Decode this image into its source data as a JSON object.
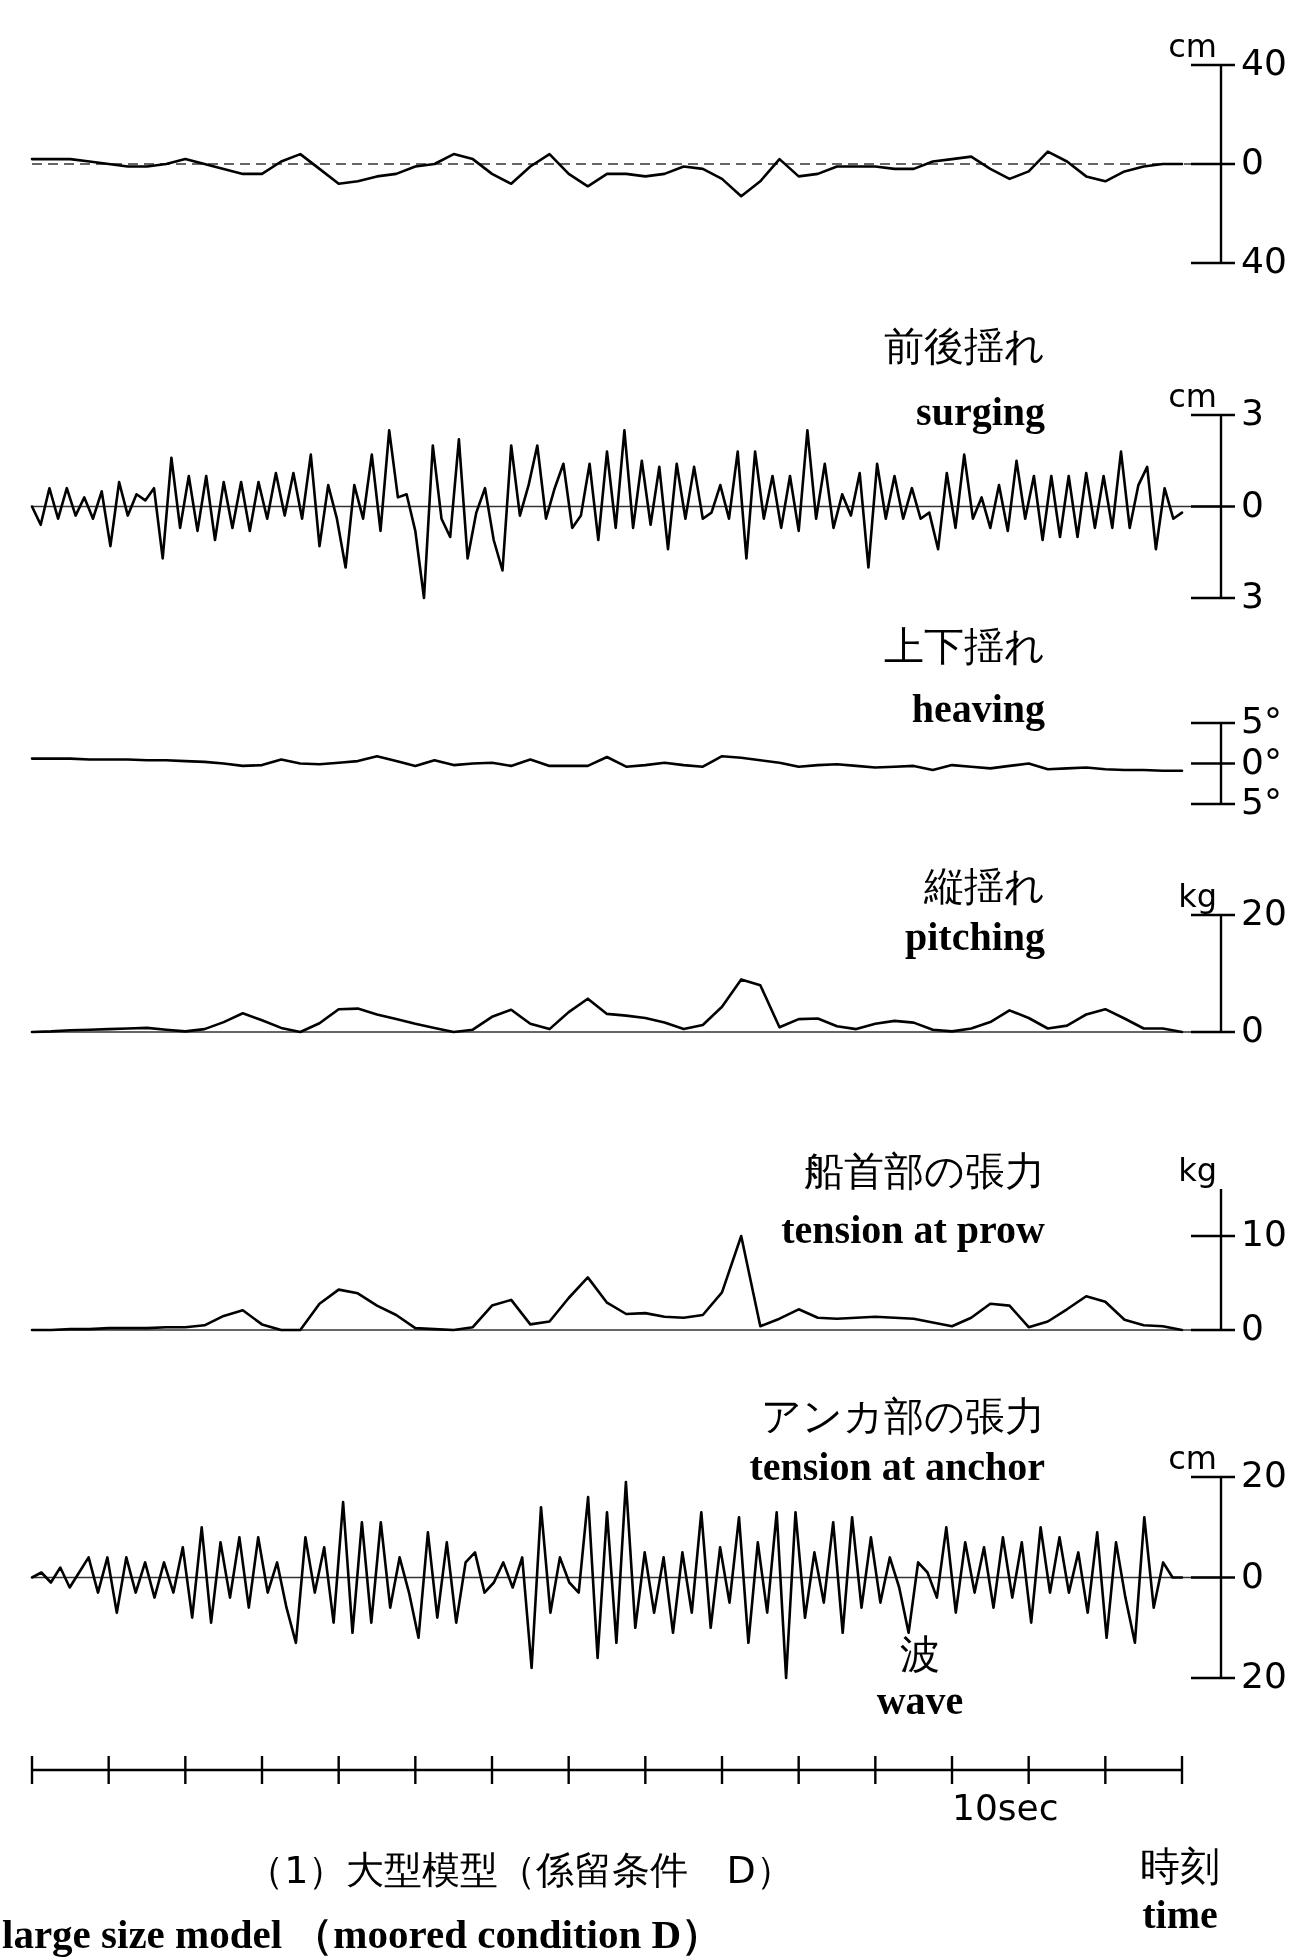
{
  "chart_data": [
    {
      "type": "line",
      "title": "前後揺れ",
      "subtitle": "surging",
      "ylabel": "cm",
      "ylim": [
        -40,
        40
      ],
      "yticks": [
        {
          "value": -40,
          "label": "40"
        },
        0,
        40
      ],
      "tick_labels": "y",
      "ref_lines": [
        {
          "axis": "y",
          "value": 0,
          "line_style": "dashed"
        }
      ],
      "categories": [
        null,
        null,
        null,
        null,
        null,
        null,
        null,
        null,
        null,
        null,
        null,
        null,
        null,
        null,
        null,
        null,
        null,
        null,
        null,
        null,
        null,
        null,
        null,
        null,
        null,
        null,
        null,
        null,
        null,
        null,
        null,
        null,
        null,
        null,
        null,
        null,
        null,
        null,
        null,
        null,
        null,
        null,
        null,
        null,
        null,
        null,
        null,
        null,
        null,
        null,
        null,
        null,
        null,
        null,
        null,
        null,
        null,
        null,
        null,
        null,
        null
      ],
      "series": [
        {
          "color": "#000000",
          "values": [
            2,
            2,
            2,
            1,
            0,
            -1,
            -1,
            0,
            2,
            0,
            -2,
            -4,
            -4,
            1,
            4,
            -2,
            -8,
            -7,
            -5,
            -4,
            -1,
            0,
            4,
            2,
            -4,
            -8,
            -1,
            4,
            -4,
            -9,
            -4,
            -4,
            -5,
            -4,
            -1,
            -2,
            -6,
            -13,
            -7,
            2,
            -5,
            -4,
            -1,
            -1,
            -1,
            -2,
            -2,
            1,
            2,
            3,
            -2,
            -6,
            -3,
            5,
            1,
            -5,
            -7,
            -3,
            -1,
            0,
            0
          ]
        }
      ]
    },
    {
      "type": "line",
      "title": "上下揺れ",
      "subtitle": "heaving",
      "ylabel": "cm",
      "ylim": [
        -3,
        3
      ],
      "yticks": [
        {
          "value": -3,
          "label": "3"
        },
        0,
        3
      ],
      "tick_labels": "y",
      "ref_lines": [
        {
          "axis": "y",
          "value": 0,
          "line_style": "solid"
        }
      ],
      "categories": [
        null,
        null,
        null,
        null,
        null,
        null,
        null,
        null,
        null,
        null,
        null,
        null,
        null,
        null,
        null,
        null,
        null,
        null,
        null,
        null,
        null,
        null,
        null,
        null,
        null,
        null,
        null,
        null,
        null,
        null,
        null,
        null,
        null,
        null,
        null,
        null,
        null,
        null,
        null,
        null,
        null,
        null,
        null,
        null,
        null,
        null,
        null,
        null,
        null,
        null,
        null,
        null,
        null,
        null,
        null,
        null,
        null,
        null,
        null,
        null,
        null,
        null,
        null,
        null,
        null,
        null,
        null,
        null,
        null,
        null,
        null,
        null,
        null,
        null,
        null,
        null,
        null,
        null,
        null,
        null,
        null,
        null,
        null,
        null,
        null,
        null,
        null,
        null,
        null,
        null,
        null,
        null,
        null,
        null,
        null,
        null,
        null,
        null,
        null,
        null,
        null,
        null,
        null,
        null,
        null,
        null,
        null,
        null,
        null,
        null,
        null,
        null,
        null,
        null,
        null,
        null,
        null,
        null,
        null,
        null,
        null,
        null,
        null,
        null,
        null,
        null,
        null,
        null,
        null,
        null,
        null,
        null,
        null
      ],
      "series": [
        {
          "color": "#000000",
          "values": [
            0,
            -0.6,
            0.6,
            -0.4,
            0.6,
            -0.3,
            0.3,
            -0.4,
            0.5,
            -1.3,
            0.8,
            -0.3,
            0.4,
            0.2,
            0.6,
            -1.7,
            1.6,
            -0.7,
            1.0,
            -0.8,
            1.0,
            -1.1,
            0.8,
            -0.7,
            0.8,
            -0.8,
            0.8,
            -0.4,
            1.1,
            -0.3,
            1.1,
            -0.4,
            1.7,
            -1.3,
            0.7,
            -0.4,
            -2.0,
            0.7,
            -0.4,
            1.7,
            -0.8,
            2.5,
            0.3,
            0.4,
            -0.8,
            -3,
            2.0,
            -0.4,
            -1.0,
            2.2,
            -1.7,
            -0.2,
            0.6,
            -1.1,
            -2.1,
            2.0,
            -0.3,
            0.7,
            2.0,
            -0.4,
            0.6,
            1.4,
            -0.7,
            -0.3,
            1.4,
            -1.1,
            1.8,
            -0.7,
            2.5,
            -0.7,
            1.5,
            -0.6,
            1.3,
            -1.4,
            1.4,
            -0.4,
            1.3,
            -0.4,
            -0.2,
            0.7,
            -0.4,
            1.8,
            -1.7,
            1.8,
            -0.4,
            1.0,
            -0.7,
            1.0,
            -0.8,
            2.5,
            -0.4,
            1.4,
            -0.7,
            0.4,
            -0.3,
            1.1,
            -2.0,
            1.4,
            -0.4,
            1.0,
            -0.4,
            0.6,
            -0.4,
            -0.2,
            -1.4,
            1.1,
            -0.7,
            1.7,
            -0.4,
            0.3,
            -0.7,
            0.7,
            -0.8,
            1.5,
            -0.4,
            1.0,
            -1.1,
            1.0,
            -1.0,
            1.0,
            -1.0,
            1.1,
            -0.7,
            1.0,
            -0.7,
            1.8,
            -0.7,
            0.7,
            1.3,
            -1.4,
            0.6,
            -0.4,
            -0.2
          ]
        }
      ]
    },
    {
      "type": "line",
      "title": "縦揺れ",
      "subtitle": "pitching",
      "ylim": [
        -5,
        5
      ],
      "yticks": [
        {
          "value": -5,
          "label": "5°"
        },
        {
          "value": 0,
          "label": "0°"
        },
        {
          "value": 5,
          "label": "5°"
        }
      ],
      "tick_labels": "y",
      "categories": [
        null,
        null,
        null,
        null,
        null,
        null,
        null,
        null,
        null,
        null,
        null,
        null,
        null,
        null,
        null,
        null,
        null,
        null,
        null,
        null,
        null,
        null,
        null,
        null,
        null,
        null,
        null,
        null,
        null,
        null,
        null,
        null,
        null,
        null,
        null,
        null,
        null,
        null,
        null,
        null,
        null,
        null,
        null,
        null,
        null,
        null,
        null,
        null,
        null,
        null,
        null,
        null,
        null,
        null,
        null,
        null,
        null,
        null,
        null,
        null,
        null
      ],
      "series": [
        {
          "color": "#000000",
          "values": [
            0.6,
            0.6,
            0.6,
            0.5,
            0.5,
            0.5,
            0.4,
            0.4,
            0.3,
            0.2,
            0,
            -0.3,
            -0.2,
            0.5,
            0,
            -0.1,
            0.1,
            0.3,
            0.9,
            0.3,
            -0.3,
            0.4,
            -0.2,
            0,
            0.1,
            -0.3,
            0.5,
            -0.3,
            -0.3,
            -0.3,
            0.8,
            -0.4,
            -0.2,
            0.1,
            -0.2,
            -0.4,
            0.9,
            0.7,
            0.4,
            0.1,
            -0.4,
            -0.2,
            -0.1,
            -0.3,
            -0.5,
            -0.4,
            -0.3,
            -0.8,
            -0.2,
            -0.4,
            -0.6,
            -0.3,
            0,
            -0.7,
            -0.6,
            -0.5,
            -0.7,
            -0.8,
            -0.8,
            -0.9,
            -0.9
          ]
        }
      ]
    },
    {
      "type": "line",
      "title": "船首部の張力",
      "subtitle": "tension at prow",
      "ylabel": "kg",
      "ylim": [
        0,
        20
      ],
      "yticks": [
        0,
        20
      ],
      "tick_labels": "y",
      "ref_lines": [
        {
          "axis": "y",
          "value": 0,
          "line_style": "solid"
        }
      ],
      "categories": [
        null,
        null,
        null,
        null,
        null,
        null,
        null,
        null,
        null,
        null,
        null,
        null,
        null,
        null,
        null,
        null,
        null,
        null,
        null,
        null,
        null,
        null,
        null,
        null,
        null,
        null,
        null,
        null,
        null,
        null,
        null,
        null,
        null,
        null,
        null,
        null,
        null,
        null,
        null,
        null,
        null,
        null,
        null,
        null,
        null,
        null,
        null,
        null,
        null,
        null,
        null,
        null,
        null,
        null,
        null,
        null,
        null,
        null,
        null,
        null,
        null
      ],
      "series": [
        {
          "color": "#000000",
          "values": [
            0,
            0.1,
            0.3,
            0.4,
            0.5,
            0.6,
            0.7,
            0.4,
            0.1,
            0.5,
            1.7,
            3.2,
            2,
            0.7,
            0,
            1.5,
            3.9,
            4.0,
            3,
            2.2,
            1.4,
            0.7,
            0,
            0.4,
            2.6,
            3.8,
            1.4,
            0.5,
            3.4,
            5.7,
            3.1,
            2.8,
            2.4,
            1.6,
            0.5,
            1.2,
            4.3,
            9,
            8,
            0.8,
            2.2,
            2.3,
            1,
            0.5,
            1.4,
            1.9,
            1.6,
            0.4,
            0.1,
            0.6,
            1.7,
            3.7,
            2.4,
            0.6,
            1.1,
            3,
            3.9,
            2.3,
            0.6,
            0.6,
            0
          ]
        }
      ]
    },
    {
      "type": "line",
      "title": "アンカ部の張力",
      "subtitle": "tension at anchor",
      "ylabel": "kg",
      "ylim": [
        0,
        15
      ],
      "yticks": [
        0,
        10
      ],
      "tick_labels": "y",
      "ref_lines": [
        {
          "axis": "y",
          "value": 0,
          "line_style": "solid"
        }
      ],
      "categories": [
        null,
        null,
        null,
        null,
        null,
        null,
        null,
        null,
        null,
        null,
        null,
        null,
        null,
        null,
        null,
        null,
        null,
        null,
        null,
        null,
        null,
        null,
        null,
        null,
        null,
        null,
        null,
        null,
        null,
        null,
        null,
        null,
        null,
        null,
        null,
        null,
        null,
        null,
        null,
        null,
        null,
        null,
        null,
        null,
        null,
        null,
        null,
        null,
        null,
        null,
        null,
        null,
        null,
        null,
        null,
        null,
        null,
        null,
        null,
        null,
        null
      ],
      "series": [
        {
          "color": "#000000",
          "values": [
            0,
            0,
            0.1,
            0.1,
            0.2,
            0.2,
            0.2,
            0.3,
            0.3,
            0.5,
            1.5,
            2.1,
            0.6,
            0,
            0,
            2.8,
            4.3,
            3.9,
            2.6,
            1.6,
            0.2,
            0.1,
            0,
            0.3,
            2.6,
            3.2,
            0.6,
            0.9,
            3.4,
            5.6,
            2.9,
            1.7,
            1.8,
            1.4,
            1.3,
            1.6,
            4,
            10,
            0.4,
            1.2,
            2.2,
            1.3,
            1.2,
            1.3,
            1.4,
            1.3,
            1.2,
            0.8,
            0.4,
            1.3,
            2.8,
            2.6,
            0.3,
            0.9,
            2.2,
            3.6,
            3,
            1.1,
            0.5,
            0.4,
            0
          ]
        }
      ]
    },
    {
      "type": "line",
      "title": "波",
      "subtitle": "wave",
      "ylabel": "cm",
      "xlabel": "時刻\ntime",
      "ylim": [
        -20,
        20
      ],
      "yticks": [
        {
          "value": -20,
          "label": "20"
        },
        0,
        20
      ],
      "tick_labels": "y",
      "ref_lines": [
        {
          "axis": "y",
          "value": 0,
          "line_style": "solid"
        }
      ],
      "annotations": [
        "10sec",
        "（1）大型模型（係留条件　D）",
        "large size model （moored condition D）"
      ],
      "categories": [
        null,
        null,
        null,
        null,
        null,
        null,
        null,
        null,
        null,
        null,
        null,
        null,
        null,
        null,
        null,
        null,
        null,
        null,
        null,
        null,
        null,
        null,
        null,
        null,
        null,
        null,
        null,
        null,
        null,
        null,
        null,
        null,
        null,
        null,
        null,
        null,
        null,
        null,
        null,
        null,
        null,
        null,
        null,
        null,
        null,
        null,
        null,
        null,
        null,
        null,
        null,
        null,
        null,
        null,
        null,
        null,
        null,
        null,
        null,
        null,
        null,
        null,
        null,
        null,
        null,
        null,
        null,
        null,
        null,
        null,
        null,
        null,
        null,
        null,
        null,
        null,
        null,
        null,
        null,
        null,
        null,
        null,
        null,
        null,
        null,
        null,
        null,
        null,
        null,
        null,
        null,
        null,
        null,
        null,
        null,
        null,
        null,
        null,
        null,
        null,
        null,
        null,
        null,
        null,
        null,
        null,
        null,
        null,
        null,
        null,
        null,
        null,
        null,
        null,
        null,
        null,
        null,
        null,
        null,
        null,
        null,
        null,
        null
      ],
      "series": [
        {
          "color": "#000000",
          "values": [
            0,
            1,
            -1,
            2,
            -2,
            1,
            4,
            -3,
            4,
            -7,
            4,
            -3,
            3,
            -4,
            3,
            -3,
            6,
            -8,
            10,
            -9,
            7,
            -4,
            8,
            -6,
            8,
            -3,
            3,
            -6,
            -13,
            8,
            -3,
            6,
            -9,
            15,
            -11,
            11,
            -9,
            11,
            -6,
            4,
            -3,
            -12,
            9,
            -8,
            7,
            -9,
            3,
            5,
            -3,
            -1,
            3,
            -2,
            4,
            -18,
            14,
            -7,
            4,
            -1,
            -3,
            16,
            -16,
            13,
            -13,
            19,
            -10,
            5,
            -7,
            4,
            -11,
            5,
            -7,
            13,
            -10,
            6,
            -5,
            12,
            -13,
            7,
            -7,
            13,
            -20,
            13,
            -8,
            5,
            -5,
            11,
            -11,
            12,
            -6,
            8,
            -5,
            4,
            -2,
            -11,
            3,
            1,
            -4,
            10,
            -7,
            7,
            -3,
            6,
            -6,
            8,
            -4,
            7,
            -9,
            10,
            -3,
            8,
            -3,
            5,
            -7,
            9,
            -12,
            7,
            -4,
            -13,
            12,
            -6,
            3,
            0,
            0
          ]
        }
      ]
    }
  ]
}
